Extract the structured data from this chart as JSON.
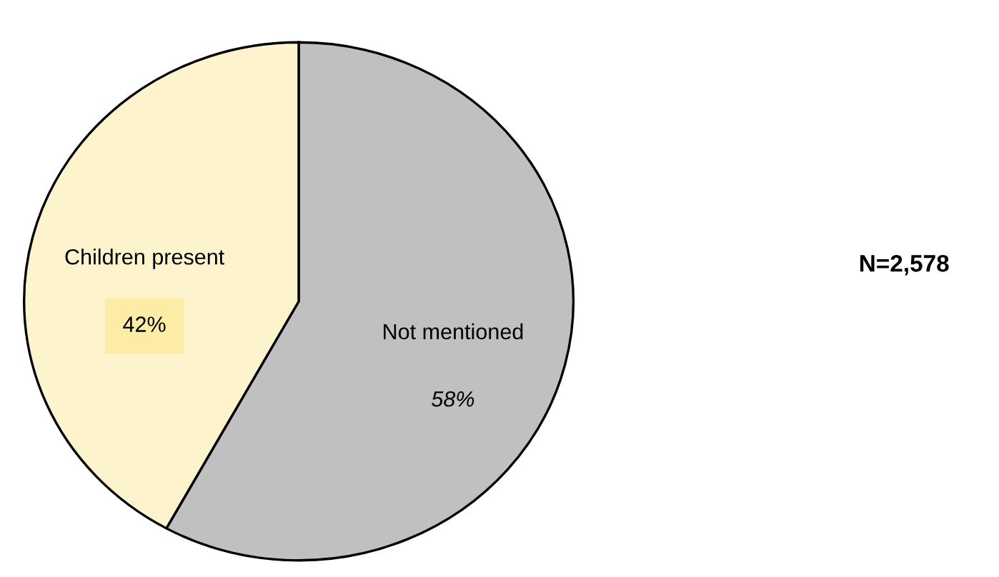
{
  "chart_data": {
    "type": "pie",
    "categories": [
      "Children present",
      "Not mentioned"
    ],
    "values": [
      42,
      58
    ],
    "value_labels": [
      "42%",
      "58%"
    ],
    "colors": [
      "#fdf3cc",
      "#c0c0c0"
    ],
    "annotations": [
      "N=2,578"
    ]
  }
}
